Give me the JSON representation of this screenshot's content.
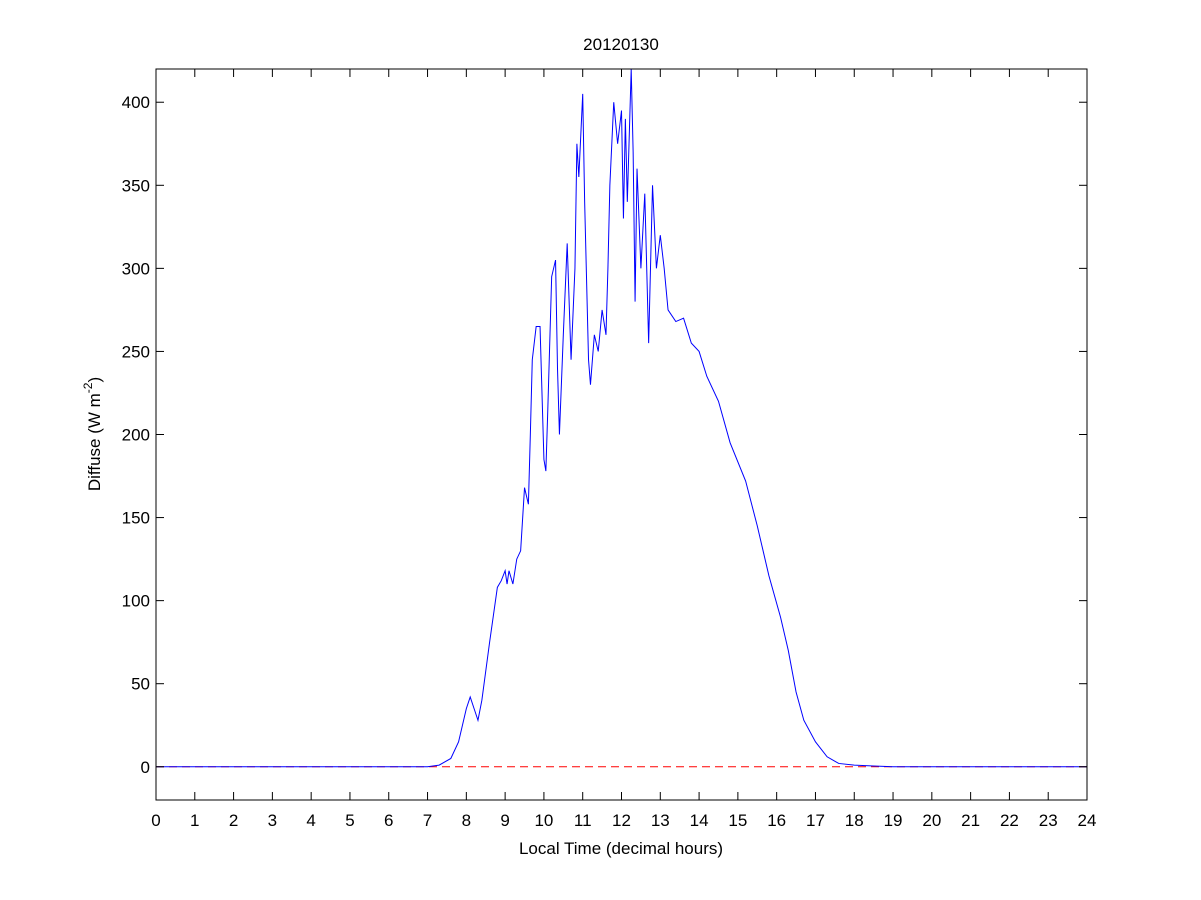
{
  "chart_data": {
    "type": "line",
    "title": "20120130",
    "xlabel": "Local Time (decimal hours)",
    "ylabel": [
      "Diffuse (W m",
      "-2",
      ")"
    ],
    "xlim": [
      0,
      24
    ],
    "ylim": [
      -20,
      420
    ],
    "xticks": [
      0,
      1,
      2,
      3,
      4,
      5,
      6,
      7,
      8,
      9,
      10,
      11,
      12,
      13,
      14,
      15,
      16,
      17,
      18,
      19,
      20,
      21,
      22,
      23,
      24
    ],
    "yticks": [
      0,
      50,
      100,
      150,
      200,
      250,
      300,
      350,
      400
    ],
    "reference_line": {
      "value": 0,
      "color": "#ff0000"
    },
    "series": [
      {
        "color": "#0000ff",
        "x": [
          0,
          7,
          7.3,
          7.6,
          7.8,
          8.0,
          8.1,
          8.2,
          8.3,
          8.4,
          8.6,
          8.8,
          8.9,
          9.0,
          9.05,
          9.1,
          9.2,
          9.3,
          9.4,
          9.5,
          9.6,
          9.65,
          9.7,
          9.8,
          9.9,
          10.0,
          10.05,
          10.1,
          10.2,
          10.3,
          10.35,
          10.4,
          10.5,
          10.6,
          10.7,
          10.8,
          10.85,
          10.9,
          11.0,
          11.05,
          11.15,
          11.2,
          11.3,
          11.4,
          11.5,
          11.6,
          11.65,
          11.7,
          11.8,
          11.9,
          12.0,
          12.05,
          12.1,
          12.15,
          12.25,
          12.3,
          12.35,
          12.4,
          12.5,
          12.6,
          12.7,
          12.8,
          12.9,
          13.0,
          13.1,
          13.2,
          13.4,
          13.6,
          13.8,
          14.0,
          14.2,
          14.5,
          14.8,
          15.2,
          15.5,
          15.8,
          16.1,
          16.3,
          16.5,
          16.7,
          17.0,
          17.3,
          17.6,
          18.0,
          18.5,
          19,
          24
        ],
        "values": [
          0,
          0,
          1,
          5,
          15,
          35,
          42,
          35,
          28,
          40,
          75,
          108,
          112,
          118,
          110,
          118,
          110,
          125,
          130,
          168,
          158,
          200,
          245,
          265,
          265,
          185,
          178,
          215,
          295,
          305,
          240,
          200,
          260,
          315,
          245,
          300,
          375,
          355,
          405,
          340,
          245,
          230,
          260,
          250,
          275,
          260,
          300,
          350,
          400,
          375,
          395,
          330,
          390,
          340,
          420,
          370,
          280,
          360,
          300,
          345,
          255,
          350,
          300,
          320,
          300,
          275,
          268,
          270,
          255,
          250,
          235,
          220,
          195,
          172,
          145,
          115,
          90,
          70,
          45,
          28,
          15,
          6,
          2,
          1,
          0.5,
          0,
          0
        ]
      }
    ]
  }
}
